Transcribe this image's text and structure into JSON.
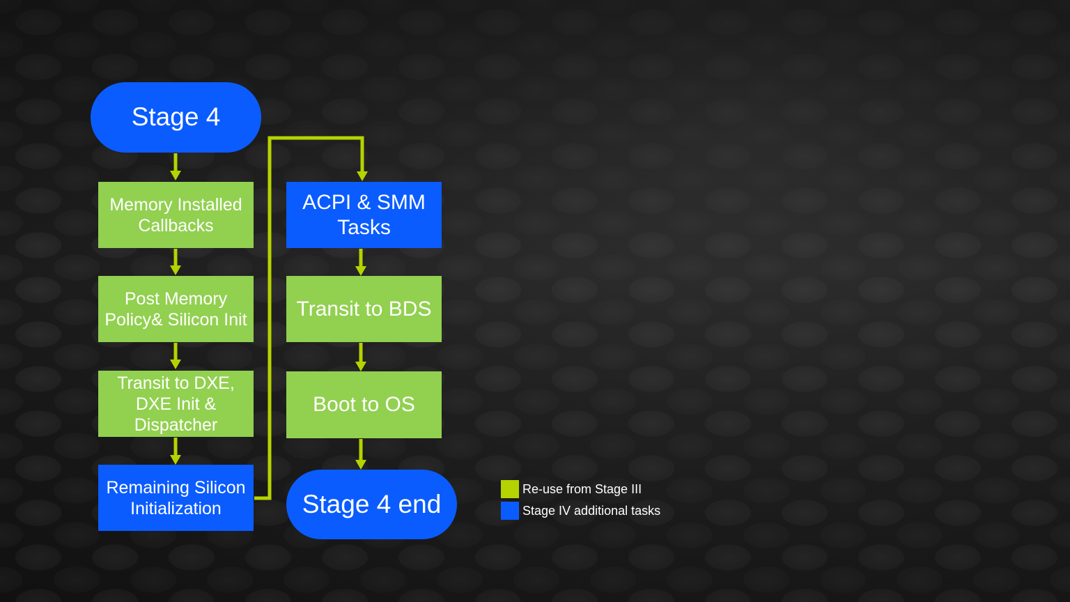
{
  "nodes": {
    "stage_start": "Stage 4",
    "memory_callbacks": "Memory Installed Callbacks",
    "post_memory": "Post Memory Policy& Silicon Init",
    "transit_dxe": "Transit to DXE, DXE Init & Dispatcher",
    "remaining_silicon": "Remaining Silicon Initialization",
    "acpi_smm": "ACPI & SMM Tasks",
    "transit_bds": "Transit to BDS",
    "boot_os": "Boot to OS",
    "stage_end": "Stage 4 end"
  },
  "legend": {
    "reuse": {
      "label": "Re-use from Stage III",
      "color": "#b5d300"
    },
    "additional": {
      "label": "Stage IV additional tasks",
      "color": "#0a5cff"
    }
  },
  "colors": {
    "green_box": "#92d050",
    "blue_box": "#0a5cff",
    "connector": "#b5d300"
  }
}
